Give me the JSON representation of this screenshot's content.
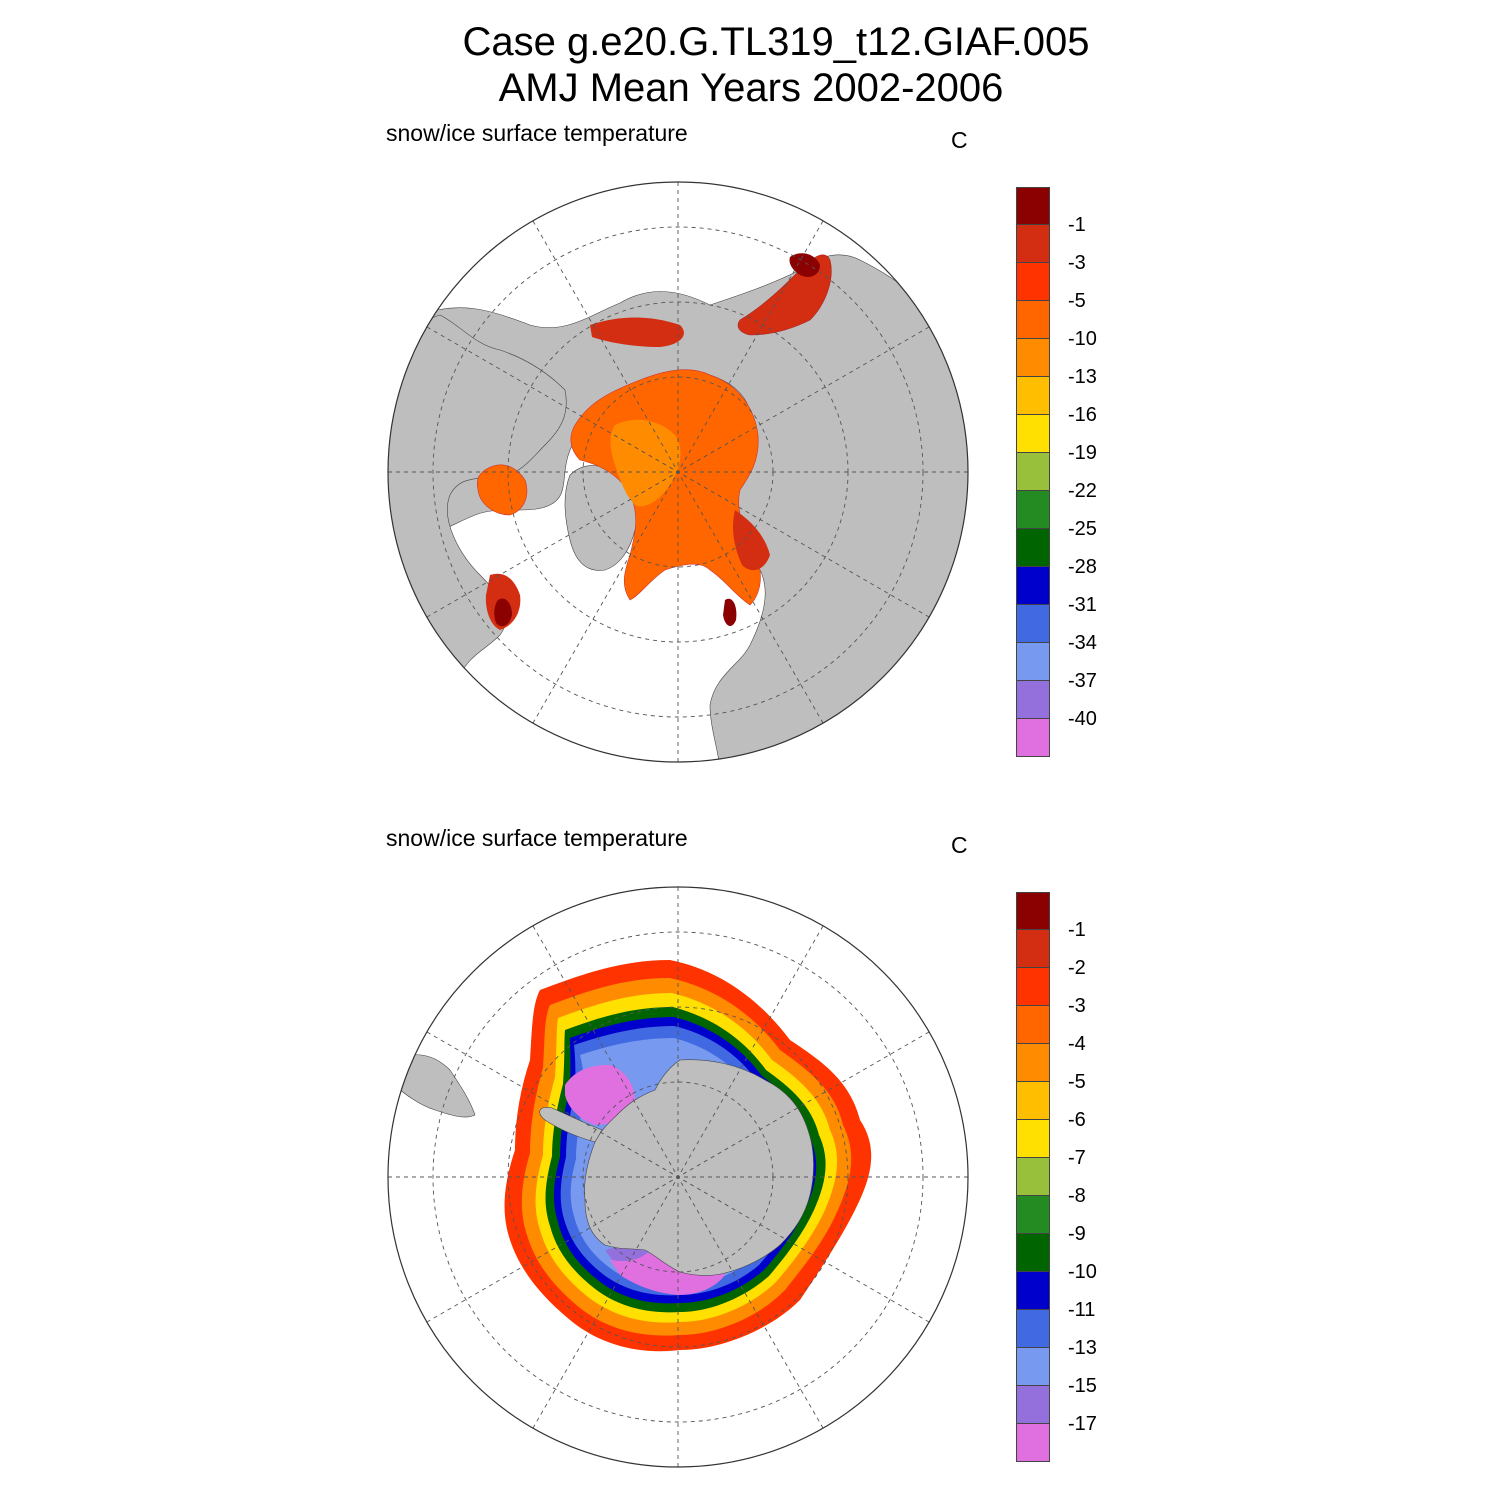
{
  "figure": {
    "title_line1": "Case g.e20.G.TL319_t12.GIAF.005",
    "title_line2": "AMJ Mean   Years 2002-2006"
  },
  "colors": {
    "land": "#bebebe",
    "ocean": "#ffffff",
    "grid": "#555555"
  },
  "panels": [
    {
      "id": "north",
      "hemisphere": "Northern Hemisphere",
      "variable_label": "snow/ice surface temperature",
      "units": "C",
      "colorbar": {
        "colors": [
          "#8b0000",
          "#d42e12",
          "#ff3300",
          "#ff6600",
          "#ff8c00",
          "#ffbf00",
          "#ffe000",
          "#99c03a",
          "#238b22",
          "#006400",
          "#0000cd",
          "#4169e1",
          "#7799f0",
          "#9370db",
          "#e070e0"
        ],
        "levels": [
          "-1",
          "-3",
          "-5",
          "-10",
          "-13",
          "-16",
          "-19",
          "-22",
          "-25",
          "-28",
          "-31",
          "-34",
          "-37",
          "-40"
        ]
      }
    },
    {
      "id": "south",
      "hemisphere": "Southern Hemisphere",
      "variable_label": "snow/ice surface temperature",
      "units": "C",
      "colorbar": {
        "colors": [
          "#8b0000",
          "#d42e12",
          "#ff3300",
          "#ff6600",
          "#ff8c00",
          "#ffbf00",
          "#ffe000",
          "#99c03a",
          "#238b22",
          "#006400",
          "#0000cd",
          "#4169e1",
          "#7799f0",
          "#9370db",
          "#e070e0"
        ],
        "levels": [
          "-1",
          "-2",
          "-3",
          "-4",
          "-5",
          "-6",
          "-7",
          "-8",
          "-9",
          "-10",
          "-11",
          "-13",
          "-15",
          "-17"
        ]
      }
    }
  ]
}
